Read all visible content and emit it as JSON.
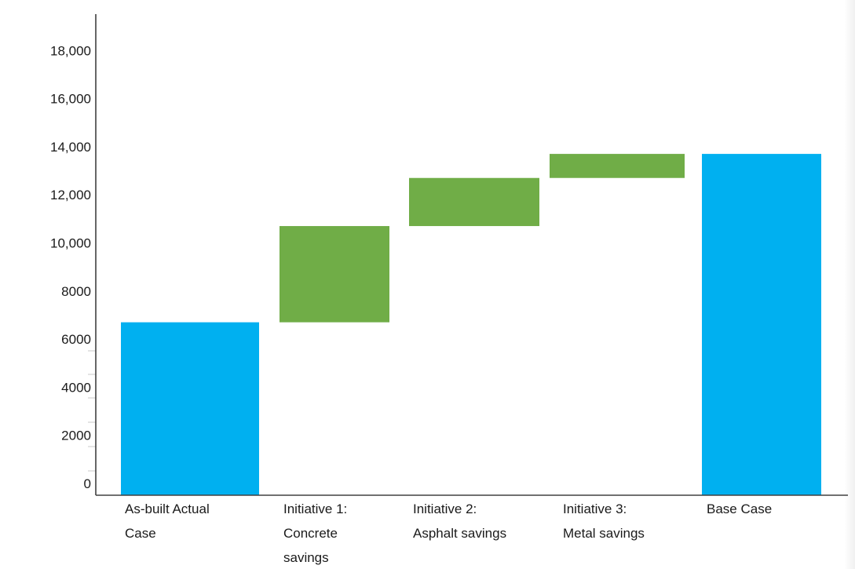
{
  "chart_data": {
    "type": "bar",
    "subtype": "waterfall",
    "title": "",
    "xlabel": "",
    "ylabel": "",
    "ylim": [
      0,
      19000
    ],
    "grid": false,
    "legend": "none",
    "y_ticks": [
      0,
      2000,
      4000,
      6000,
      8000,
      10000,
      12000,
      14000,
      16000,
      18000
    ],
    "y_tick_labels": [
      "0",
      "2000",
      "4000",
      "6000",
      "8000",
      "10,000",
      "12,000",
      "14,000",
      "16,000",
      "18,000"
    ],
    "categories": [
      [
        "As-built Actual",
        "Case"
      ],
      [
        "Initiative 1:",
        "Concrete",
        "savings"
      ],
      [
        "Initiative 2:",
        "Asphalt savings"
      ],
      [
        "Initiative 3:",
        "Metal savings"
      ],
      [
        "Base Case"
      ]
    ],
    "bars": [
      {
        "start": 0,
        "end": 6700,
        "kind": "total",
        "color": "#00b0f0"
      },
      {
        "start": 6700,
        "end": 10700,
        "kind": "increase",
        "color": "#70ad47"
      },
      {
        "start": 10700,
        "end": 12700,
        "kind": "increase",
        "color": "#70ad47"
      },
      {
        "start": 12700,
        "end": 13700,
        "kind": "increase",
        "color": "#70ad47"
      },
      {
        "start": 0,
        "end": 13700,
        "kind": "total",
        "color": "#00b0f0"
      }
    ],
    "axis_color": "#404040"
  }
}
